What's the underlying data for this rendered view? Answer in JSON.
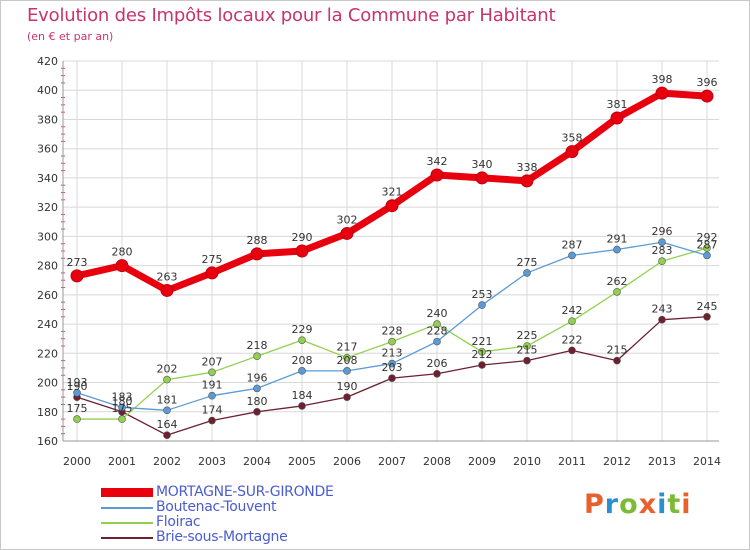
{
  "header": {
    "title": "Evolution des Impôts locaux pour la Commune par Habitant",
    "subtitle": "(en € et par an)"
  },
  "logo": {
    "text": "Proxiti",
    "letter_colors": [
      "#e8612c",
      "#2a8fd0",
      "#7dbb36",
      "#e8612c",
      "#2a8fd0",
      "#7dbb36",
      "#e8612c"
    ]
  },
  "chart_data": {
    "type": "line",
    "title": "Evolution des Impôts locaux pour la Commune par Habitant",
    "subtitle": "(en € et par an)",
    "xlabel": "",
    "ylabel": "",
    "categories": [
      "2000",
      "2001",
      "2002",
      "2003",
      "2004",
      "2005",
      "2006",
      "2007",
      "2008",
      "2009",
      "2010",
      "2011",
      "2012",
      "2013",
      "2014"
    ],
    "ylim": [
      160,
      420
    ],
    "yticks": [
      160,
      180,
      200,
      220,
      240,
      260,
      280,
      300,
      320,
      340,
      360,
      380,
      400,
      420
    ],
    "grid": true,
    "legend_position": "bottom-left",
    "series": [
      {
        "name": "MORTAGNE-SUR-GIRONDE",
        "color": "#e8000e",
        "label_color": "#4a5cd0",
        "values": [
          273,
          280,
          263,
          275,
          288,
          290,
          302,
          321,
          342,
          340,
          338,
          358,
          381,
          398,
          396
        ]
      },
      {
        "name": "Boutenac-Touvent",
        "color": "#5b9bd5",
        "label_color": "#4a5cd0",
        "values": [
          193,
          183,
          181,
          191,
          196,
          208,
          208,
          213,
          228,
          253,
          275,
          287,
          291,
          296,
          287
        ]
      },
      {
        "name": "Floirac",
        "color": "#92d050",
        "label_color": "#4a5cd0",
        "values": [
          175,
          175,
          202,
          207,
          218,
          229,
          217,
          228,
          240,
          221,
          225,
          242,
          262,
          283,
          292
        ]
      },
      {
        "name": "Brie-sous-Mortagne",
        "color": "#6e2030",
        "label_color": "#4a5cd0",
        "values": [
          190,
          180,
          164,
          174,
          180,
          184,
          190,
          203,
          206,
          212,
          215,
          222,
          215,
          243,
          245
        ]
      }
    ],
    "data_labels": [
      [
        "273",
        "280",
        "263",
        "275",
        "288",
        "290",
        "302",
        "321",
        "342",
        "340",
        "338",
        "358",
        "381",
        "398",
        "396"
      ],
      [
        "193",
        "183",
        "181",
        "191",
        "196",
        "208",
        "208",
        "213",
        "228",
        "253",
        "275",
        "287",
        "291",
        "296",
        "287"
      ],
      [
        "175",
        "175",
        "202",
        "207",
        "218",
        "229",
        "217",
        "228",
        "240",
        "221",
        "225",
        "242",
        "262",
        "283",
        "292"
      ],
      [
        "190",
        "180",
        "164",
        "174",
        "180",
        "184",
        "190",
        "203",
        "206",
        "212",
        "215",
        "222",
        "215",
        "243",
        "245"
      ]
    ]
  }
}
